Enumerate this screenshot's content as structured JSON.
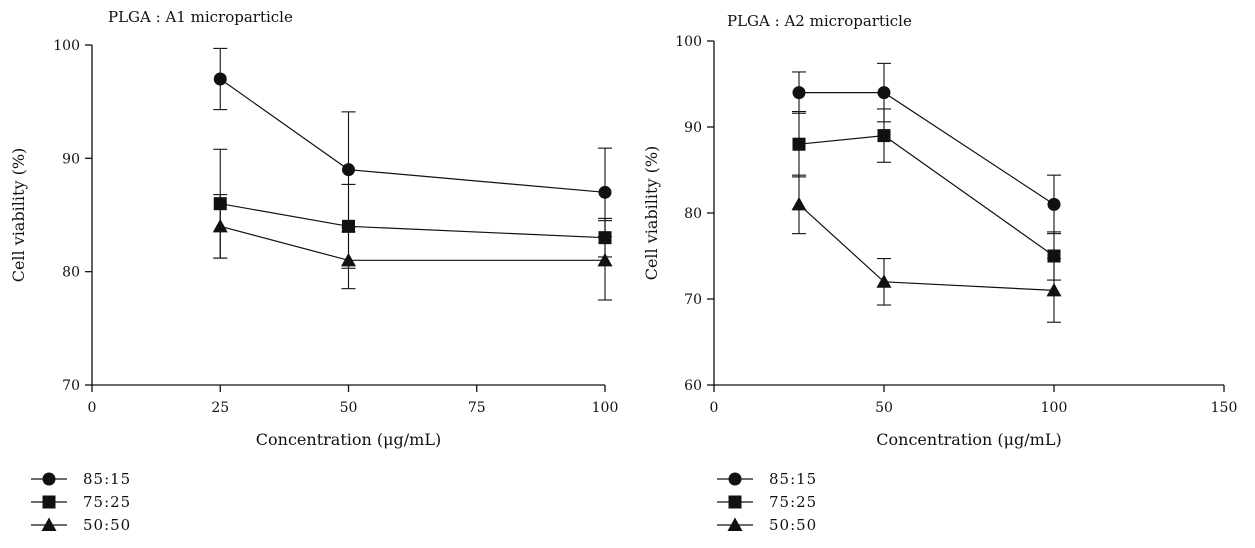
{
  "chart_data": [
    {
      "type": "line",
      "title": "PLGA : A1 microparticle",
      "xlabel": "Concentration (μg/mL)",
      "ylabel": "Cell viability (%)",
      "xlim": [
        0,
        100
      ],
      "ylim": [
        70,
        100
      ],
      "xticks": [
        0,
        25,
        50,
        75,
        100
      ],
      "yticks": [
        70,
        80,
        90,
        100
      ],
      "x": [
        25,
        50,
        100
      ],
      "series": [
        {
          "name": "85:15",
          "marker": "circle",
          "values": [
            97,
            89,
            87
          ],
          "errors": [
            2.7,
            5.1,
            3.9
          ]
        },
        {
          "name": "75:25",
          "marker": "square",
          "values": [
            86,
            84,
            83
          ],
          "errors": [
            4.8,
            3.7,
            1.7
          ]
        },
        {
          "name": "50:50",
          "marker": "triangle",
          "values": [
            84,
            81,
            81
          ],
          "errors": [
            2.8,
            2.5,
            3.5
          ]
        }
      ]
    },
    {
      "type": "line",
      "title": "PLGA : A2 microparticle",
      "xlabel": "Concentration (μg/mL)",
      "ylabel": "Cell viability (%)",
      "xlim": [
        0,
        150
      ],
      "ylim": [
        60,
        100
      ],
      "xticks": [
        0,
        50,
        100,
        150
      ],
      "yticks": [
        60,
        70,
        80,
        90,
        100
      ],
      "x": [
        25,
        50,
        100
      ],
      "series": [
        {
          "name": "85:15",
          "marker": "circle",
          "values": [
            94,
            94,
            81
          ],
          "errors": [
            2.4,
            3.4,
            3.4
          ]
        },
        {
          "name": "75:25",
          "marker": "square",
          "values": [
            88,
            89,
            75
          ],
          "errors": [
            3.8,
            3.1,
            2.8
          ]
        },
        {
          "name": "50:50",
          "marker": "triangle",
          "values": [
            81,
            72,
            71
          ],
          "errors": [
            3.4,
            2.7,
            3.7
          ]
        }
      ]
    }
  ],
  "colors": {
    "ink": "#111111",
    "background": "#ffffff"
  }
}
